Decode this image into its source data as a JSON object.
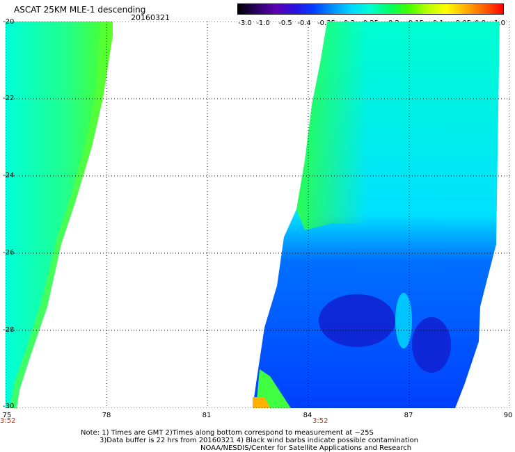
{
  "header": {
    "title": "ASCAT 25KM MLE-1 descending",
    "date": "20160321"
  },
  "colorbar": {
    "labels": [
      "-3.0",
      "-1.0",
      "-0.5",
      "-0.4",
      "-0.35",
      "-0.3",
      "-0.25",
      "-0.2",
      "-0.15",
      "-0.1",
      "-0.05",
      "0.0",
      "1.0"
    ],
    "colors": [
      "#000000",
      "#2b0066",
      "#5a00b0",
      "#2a10e0",
      "#0040ff",
      "#0090ff",
      "#00d8ff",
      "#00ffd0",
      "#00ff66",
      "#40ff00",
      "#b8ff00",
      "#ffff00",
      "#ffb000",
      "#ff6000",
      "#ff0000"
    ]
  },
  "axes": {
    "y_labels": [
      "-20",
      "-22",
      "-24",
      "-26",
      "-28",
      "-30"
    ],
    "x_labels": [
      "75",
      "78",
      "81",
      "84",
      "87",
      "90"
    ],
    "time_labels": [
      "3:52",
      "3:52"
    ]
  },
  "notes": {
    "line1": "Note: 1) Times are GMT 2)Times along bottom correspond to measurement at ~25S",
    "line2": "3)Data buffer is 22 hrs from 20160321 4) Black wind barbs indicate possible contamination",
    "line3": "NOAA/NESDIS/Center for Satellite Applications and Research"
  },
  "map": {
    "lat_range": [
      -30,
      -20
    ],
    "lon_range": [
      75,
      90
    ]
  }
}
